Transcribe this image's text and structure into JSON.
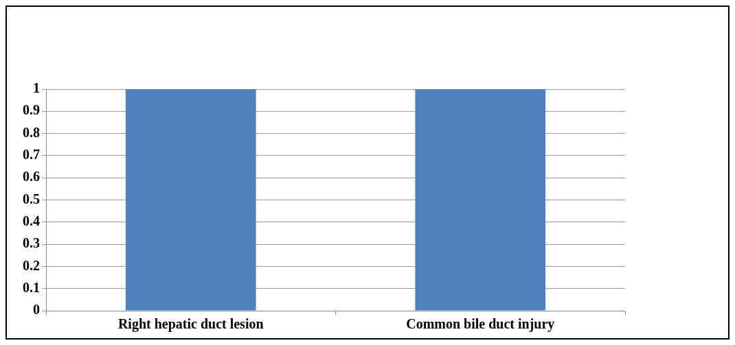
{
  "chart_data": {
    "type": "bar",
    "categories": [
      "Right hepatic duct lesion",
      "Common bile duct injury"
    ],
    "values": [
      1,
      1
    ],
    "color": "#4f81bd",
    "ylim": [
      0,
      1
    ],
    "yticks": [
      0,
      0.1,
      0.2,
      0.3,
      0.4,
      0.5,
      0.6,
      0.7,
      0.8,
      0.9,
      1
    ],
    "grid": "y",
    "legend": false
  }
}
